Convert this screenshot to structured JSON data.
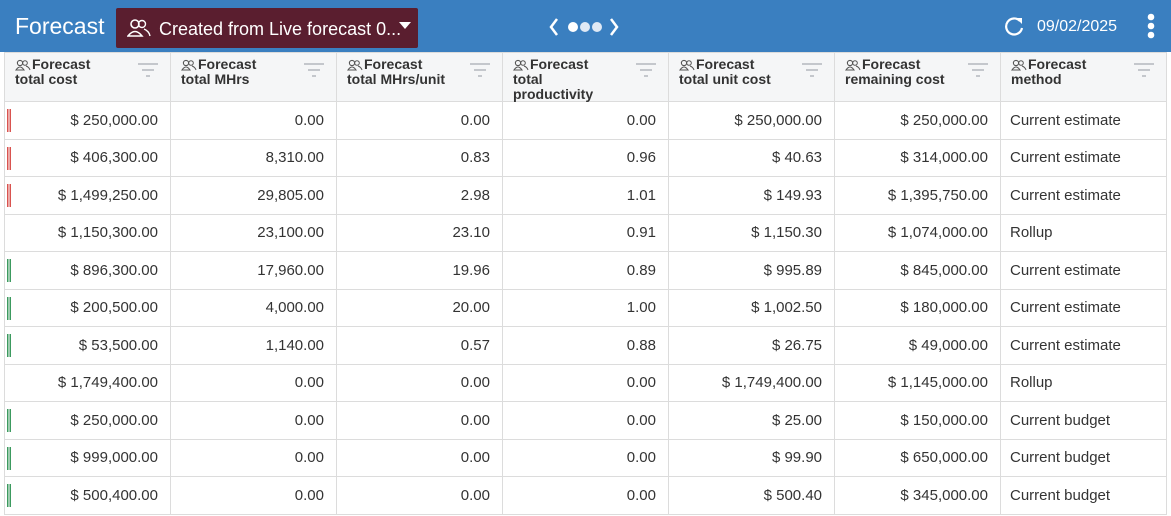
{
  "header": {
    "title": "Forecast",
    "dropdown": "Created from Live forecast 0...",
    "date": "09/02/2025"
  },
  "table": {
    "columns": [
      "Forecast\ntotal cost",
      "Forecast\ntotal MHrs",
      "Forecast\ntotal MHrs/unit",
      "Forecast\ntotal\nproductivity",
      "Forecast\ntotal unit cost",
      "Forecast\nremaining cost",
      "Forecast\nmethod"
    ],
    "row_flags": [
      "#d9534f",
      "#d9534f",
      "#d9534f",
      null,
      "#3c9a5f",
      "#3c9a5f",
      "#3c9a5f",
      null,
      "#3c9a5f",
      "#3c9a5f",
      "#3c9a5f"
    ],
    "rows": [
      [
        "$ 250,000.00",
        "0.00",
        "0.00",
        "0.00",
        "$ 250,000.00",
        "$ 250,000.00",
        "Current estimate"
      ],
      [
        "$ 406,300.00",
        "8,310.00",
        "0.83",
        "0.96",
        "$ 40.63",
        "$ 314,000.00",
        "Current estimate"
      ],
      [
        "$ 1,499,250.00",
        "29,805.00",
        "2.98",
        "1.01",
        "$ 149.93",
        "$ 1,395,750.00",
        "Current estimate"
      ],
      [
        "$ 1,150,300.00",
        "23,100.00",
        "23.10",
        "0.91",
        "$ 1,150.30",
        "$ 1,074,000.00",
        "Rollup"
      ],
      [
        "$ 896,300.00",
        "17,960.00",
        "19.96",
        "0.89",
        "$ 995.89",
        "$ 845,000.00",
        "Current estimate"
      ],
      [
        "$ 200,500.00",
        "4,000.00",
        "20.00",
        "1.00",
        "$ 1,002.50",
        "$ 180,000.00",
        "Current estimate"
      ],
      [
        "$ 53,500.00",
        "1,140.00",
        "0.57",
        "0.88",
        "$ 26.75",
        "$ 49,000.00",
        "Current estimate"
      ],
      [
        "$ 1,749,400.00",
        "0.00",
        "0.00",
        "0.00",
        "$ 1,749,400.00",
        "$ 1,145,000.00",
        "Rollup"
      ],
      [
        "$ 250,000.00",
        "0.00",
        "0.00",
        "0.00",
        "$ 25.00",
        "$ 150,000.00",
        "Current budget"
      ],
      [
        "$ 999,000.00",
        "0.00",
        "0.00",
        "0.00",
        "$ 99.90",
        "$ 650,000.00",
        "Current budget"
      ],
      [
        "$ 500,400.00",
        "0.00",
        "0.00",
        "0.00",
        "$ 500.40",
        "$ 345,000.00",
        "Current budget"
      ]
    ]
  }
}
